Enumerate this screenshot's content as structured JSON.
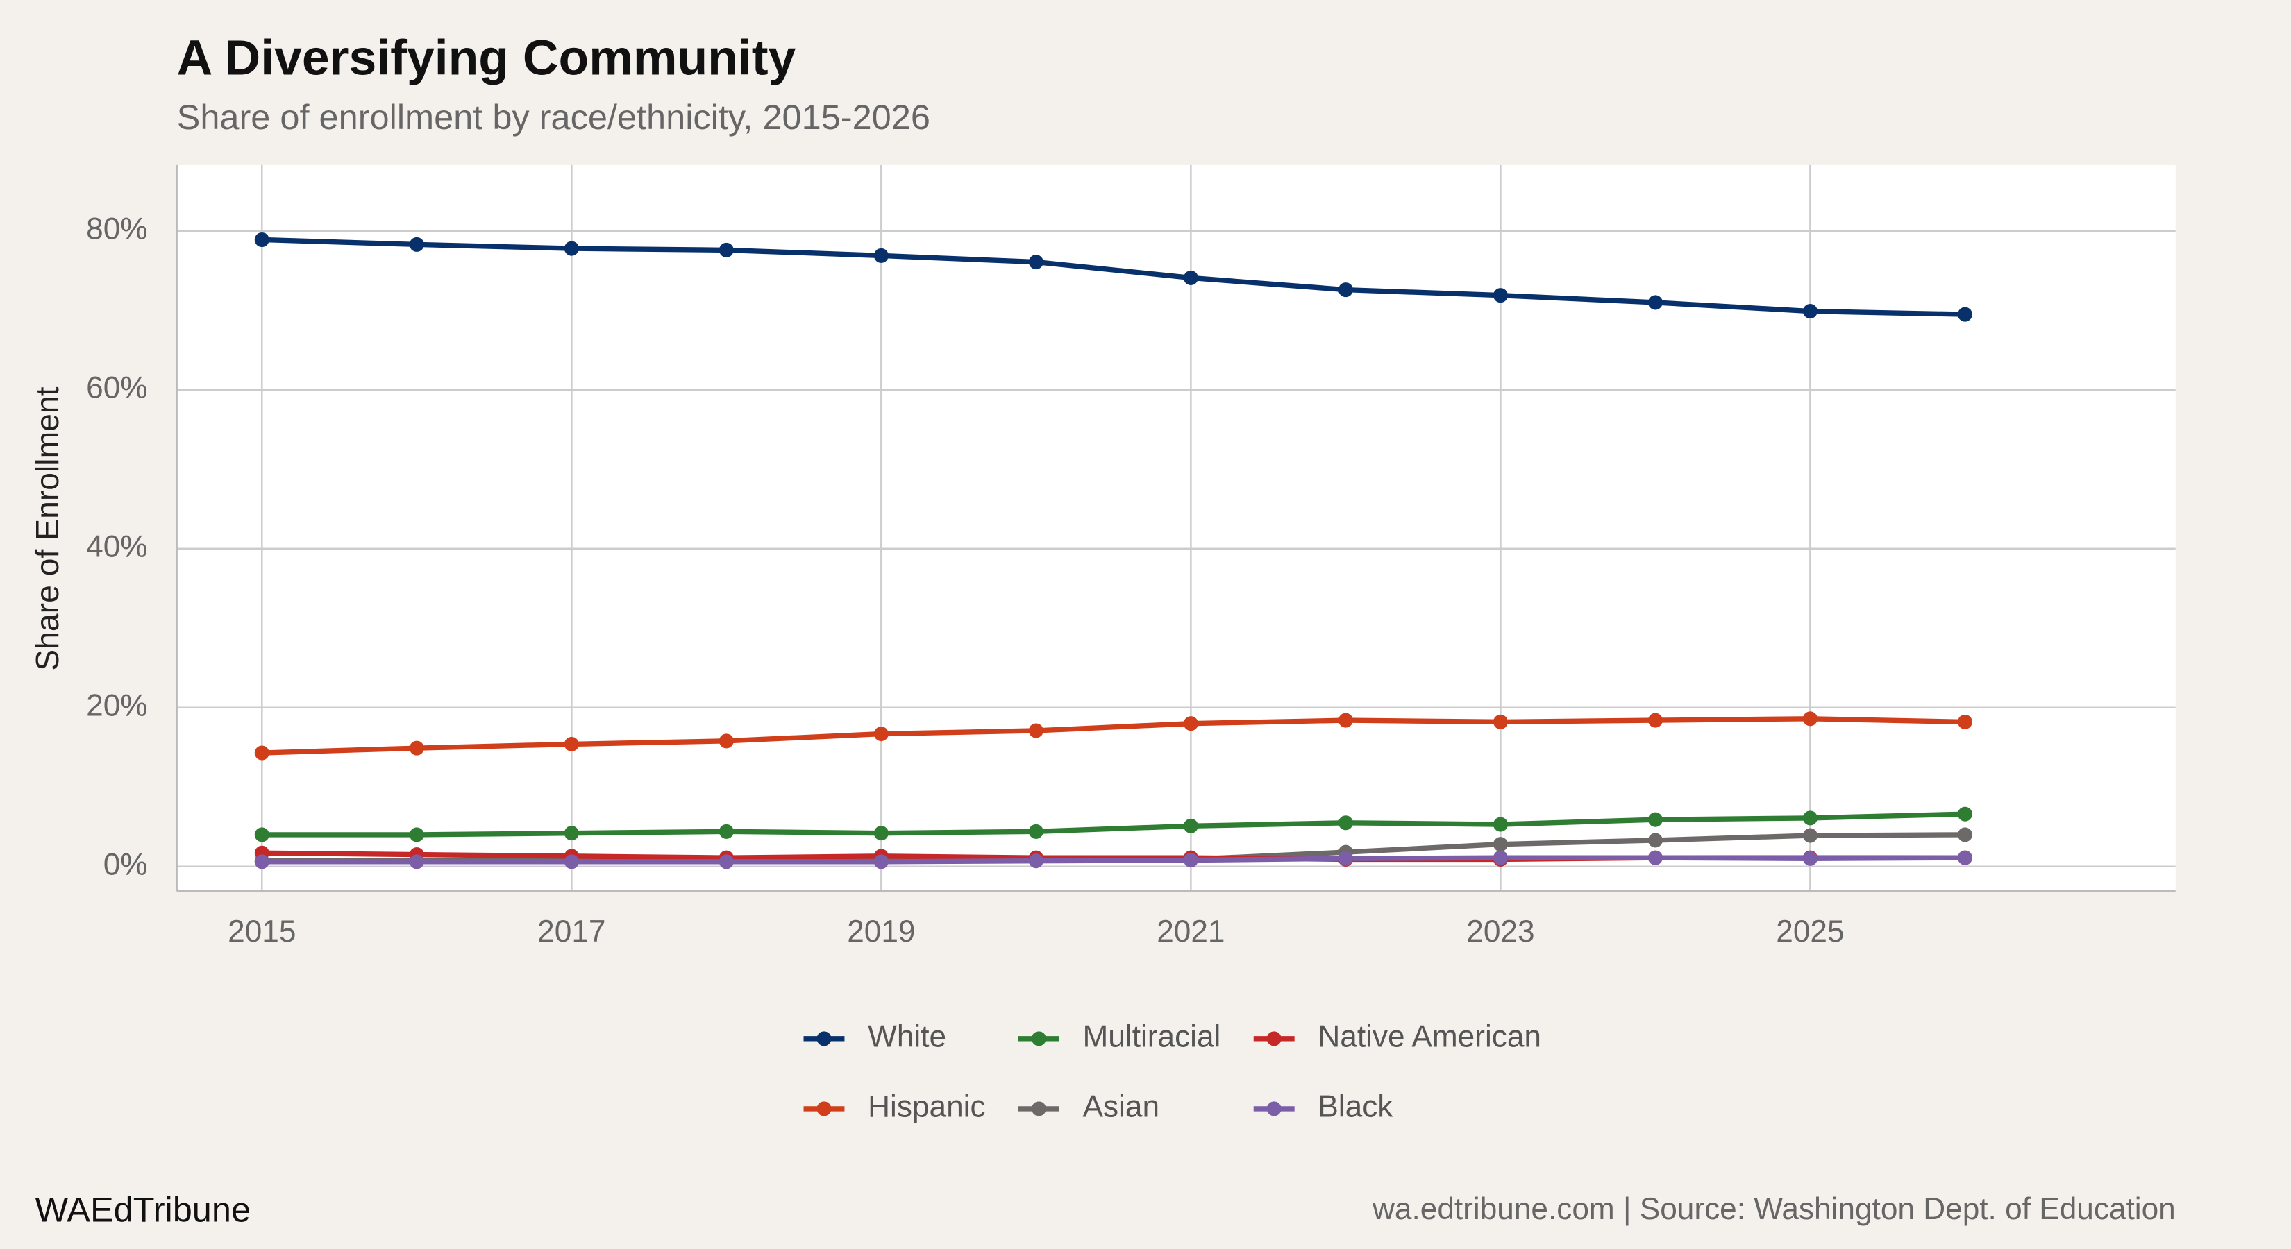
{
  "chart_data": {
    "type": "line",
    "title": "A Diversifying Community",
    "subtitle": "Share of enrollment by race/ethnicity, 2015-2026",
    "y_label": "Share of Enrollment",
    "brand": "WAEdTribune",
    "source": "wa.edtribune.com | Source: Washington Dept. of Education",
    "x": [
      2015,
      2016,
      2017,
      2018,
      2019,
      2020,
      2021,
      2022,
      2023,
      2024,
      2025,
      2026
    ],
    "series": [
      {
        "name": "White",
        "color": "#08306b",
        "values": [
          78.9,
          78.3,
          77.8,
          77.6,
          76.9,
          76.1,
          74.1,
          72.6,
          71.9,
          71.0,
          69.9,
          69.5
        ]
      },
      {
        "name": "Hispanic",
        "color": "#d13f1a",
        "values": [
          14.3,
          14.9,
          15.4,
          15.8,
          16.7,
          17.1,
          18.0,
          18.4,
          18.2,
          18.4,
          18.6,
          18.2
        ]
      },
      {
        "name": "Multiracial",
        "color": "#2e7d32",
        "values": [
          4.0,
          4.0,
          4.2,
          4.4,
          4.2,
          4.4,
          5.1,
          5.5,
          5.3,
          5.9,
          6.1,
          6.6
        ]
      },
      {
        "name": "Asian",
        "color": "#6d6968",
        "values": [
          0.7,
          0.7,
          0.7,
          0.7,
          0.7,
          0.9,
          0.9,
          1.8,
          2.8,
          3.3,
          3.9,
          4.0
        ]
      },
      {
        "name": "Native American",
        "color": "#c62828",
        "values": [
          1.7,
          1.5,
          1.3,
          1.1,
          1.3,
          1.1,
          1.1,
          0.9,
          0.9,
          1.1,
          1.1,
          1.1
        ]
      },
      {
        "name": "Black",
        "color": "#7b5ea7",
        "values": [
          0.6,
          0.6,
          0.6,
          0.6,
          0.6,
          0.7,
          0.8,
          1.0,
          1.1,
          1.1,
          1.0,
          1.1
        ]
      }
    ],
    "xlim": [
      2014.45,
      2027.36
    ],
    "xticks": [
      2015,
      2017,
      2019,
      2021,
      2023,
      2025
    ],
    "ylim": [
      -3.1,
      88.3
    ],
    "yticks": [
      {
        "value": 0,
        "label": "0%"
      },
      {
        "value": 20,
        "label": "20%"
      },
      {
        "value": 40,
        "label": "40%"
      },
      {
        "value": 60,
        "label": "60%"
      },
      {
        "value": 80,
        "label": "80%"
      }
    ],
    "grid": true,
    "legend": "bottom"
  }
}
